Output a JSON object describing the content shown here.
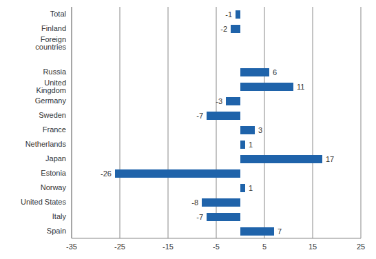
{
  "chart_data": {
    "type": "bar",
    "orientation": "horizontal",
    "categories": [
      "Total",
      "Finland",
      "Foreign countries",
      null,
      "Russia",
      "United Kingdom",
      "Germany",
      "Sweden",
      "France",
      "Netherlands",
      "Japan",
      "Estonia",
      "Norway",
      "United States",
      "Italy",
      "Spain"
    ],
    "values": [
      -1,
      -2,
      0,
      null,
      6,
      11,
      -3,
      -7,
      3,
      1,
      17,
      -26,
      1,
      -8,
      -7,
      7
    ],
    "color": "#1f63aa",
    "xlim": [
      -35,
      25
    ],
    "xticks": [
      -35,
      -25,
      -15,
      -5,
      5,
      15,
      25
    ],
    "grid": true,
    "data_labels": true
  }
}
